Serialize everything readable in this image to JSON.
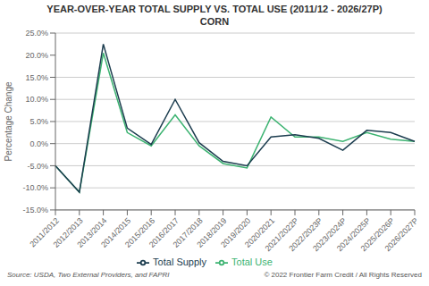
{
  "chart_data": {
    "type": "line",
    "title": "YEAR-OVER-YEAR TOTAL SUPPLY VS. TOTAL USE (2011/12 - 2026/27P)",
    "subtitle": "CORN",
    "y_label": "Percentage Change",
    "categories": [
      "2011/2012",
      "2012/2013",
      "2013/2014",
      "2014/2015",
      "2015/2016",
      "2016/2017",
      "2017/2018",
      "2018/2019",
      "2019/2020",
      "2020/2021",
      "2021/2022P",
      "2022/2023P",
      "2023/2024P",
      "2024/2025P",
      "2025/2026P",
      "2026/2027P"
    ],
    "series": [
      {
        "name": "Total Use",
        "color": "#3cb371",
        "values": [
          -5.0,
          -11.0,
          20.5,
          2.5,
          -0.5,
          6.5,
          -0.5,
          -4.5,
          -5.5,
          6.0,
          1.5,
          1.5,
          0.5,
          2.5,
          1.0,
          0.5
        ]
      },
      {
        "name": "Total Supply",
        "color": "#1c3d4f",
        "values": [
          -5.0,
          -11.0,
          22.5,
          3.5,
          -0.2,
          10.0,
          0.2,
          -4.0,
          -5.0,
          1.5,
          2.0,
          1.2,
          -1.5,
          3.0,
          2.5,
          0.5
        ]
      }
    ],
    "ylim": [
      -15.0,
      25.0
    ],
    "yticks": [
      {
        "value": -15.0,
        "label": "-15.0%"
      },
      {
        "value": -10.0,
        "label": "-10.0%"
      },
      {
        "value": -5.0,
        "label": "-5.0%"
      },
      {
        "value": 0.0,
        "label": "0.0%"
      },
      {
        "value": 5.0,
        "label": "5.0%"
      },
      {
        "value": 10.0,
        "label": "10.0%"
      },
      {
        "value": 15.0,
        "label": "15.0%"
      },
      {
        "value": 20.0,
        "label": "20.0%"
      },
      {
        "value": 25.0,
        "label": "25.0%"
      }
    ],
    "grid": true,
    "legend": "bottom",
    "annotations": [
      "Source: USDA, Two External Providers, and FAPRI",
      "© 2022 Frontier Farm Credit / All Rights Reserved"
    ]
  }
}
